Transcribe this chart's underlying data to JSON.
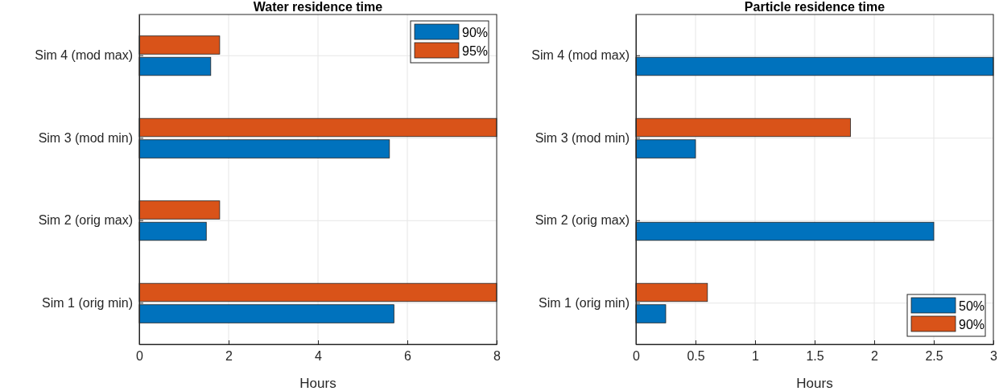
{
  "chart_data": [
    {
      "type": "bar",
      "orientation": "horizontal",
      "title": "Water residence time",
      "xlabel": "Hours",
      "categories": [
        "Sim 4 (mod max)",
        "Sim 3 (mod min)",
        "Sim 2 (orig max)",
        "Sim 1 (orig min)"
      ],
      "series": [
        {
          "name": "90%",
          "color": "#0072bd",
          "values": [
            1.6,
            5.6,
            1.5,
            5.7
          ]
        },
        {
          "name": "95%",
          "color": "#d95319",
          "values": [
            1.8,
            8,
            1.8,
            8
          ]
        }
      ],
      "xlim": [
        0,
        8
      ],
      "xticks": [
        0,
        2,
        4,
        6,
        8
      ],
      "grid": true,
      "legend": "top right"
    },
    {
      "type": "bar",
      "orientation": "horizontal",
      "title": "Particle residence time",
      "xlabel": "Hours",
      "categories": [
        "Sim 4 (mod max)",
        "Sim 3 (mod min)",
        "Sim 2 (orig max)",
        "Sim 1 (orig min)"
      ],
      "series": [
        {
          "name": "50%",
          "color": "#0072bd",
          "values": [
            3,
            0.5,
            2.5,
            0.25
          ]
        },
        {
          "name": "90%",
          "color": "#d95319",
          "values": [
            null,
            1.8,
            null,
            0.6
          ]
        }
      ],
      "xlim": [
        0,
        3
      ],
      "xticks": [
        0,
        0.5,
        1,
        1.5,
        2,
        2.5,
        3
      ],
      "grid": true,
      "legend": "bottom right"
    }
  ]
}
